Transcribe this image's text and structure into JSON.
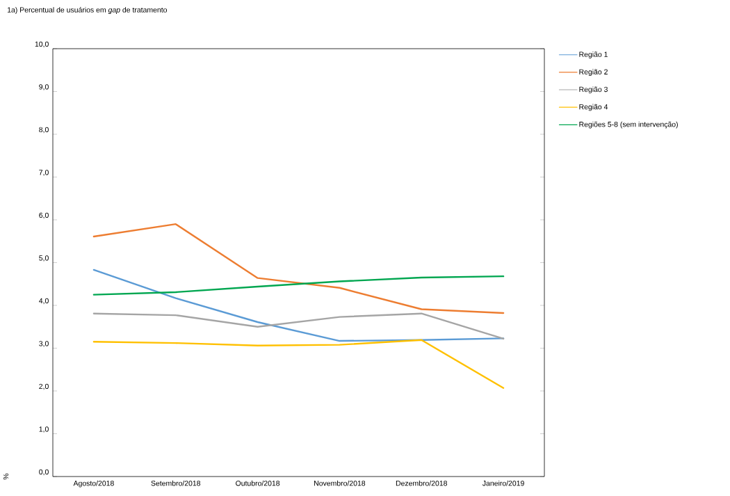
{
  "chart_data": {
    "type": "line",
    "title": "1a) Percentual de usuários em *gap* de tratamento",
    "ylabel": "%",
    "categories": [
      "Agosto/2018",
      "Setembro/2018",
      "Outubro/2018",
      "Novembro/2018",
      "Dezembro/2018",
      "Janeiro/2019"
    ],
    "series": [
      {
        "name": "Região 1",
        "color": "#5b9bd5",
        "values": [
          4.83,
          4.17,
          3.61,
          3.17,
          3.19,
          3.23
        ]
      },
      {
        "name": "Região 2",
        "color": "#ed7d31",
        "values": [
          5.61,
          5.9,
          4.64,
          4.41,
          3.91,
          3.82
        ]
      },
      {
        "name": "Região 3",
        "color": "#a5a5a5",
        "values": [
          3.81,
          3.77,
          3.5,
          3.73,
          3.81,
          3.22
        ]
      },
      {
        "name": "Região 4",
        "color": "#ffc000",
        "values": [
          3.15,
          3.12,
          3.06,
          3.08,
          3.19,
          2.07
        ]
      },
      {
        "name": "Regiões 5-8 (sem intervenção)",
        "color": "#00a650",
        "values": [
          4.25,
          4.31,
          4.44,
          4.56,
          4.65,
          4.68
        ]
      }
    ],
    "ylim": [
      0,
      10
    ],
    "yticks": [
      {
        "value": 0,
        "label": "0,0"
      },
      {
        "value": 1,
        "label": "1,0"
      },
      {
        "value": 2,
        "label": "2,0"
      },
      {
        "value": 3,
        "label": "3,0"
      },
      {
        "value": 4,
        "label": "4,0"
      },
      {
        "value": 5,
        "label": "5,0"
      },
      {
        "value": 6,
        "label": "6,0"
      },
      {
        "value": 7,
        "label": "7,0"
      },
      {
        "value": 8,
        "label": "8,0"
      },
      {
        "value": 9,
        "label": "9,0"
      },
      {
        "value": 10,
        "label": "10,0"
      }
    ],
    "grid": false,
    "legend": "top right",
    "marker": "none",
    "line_style": "solid"
  }
}
